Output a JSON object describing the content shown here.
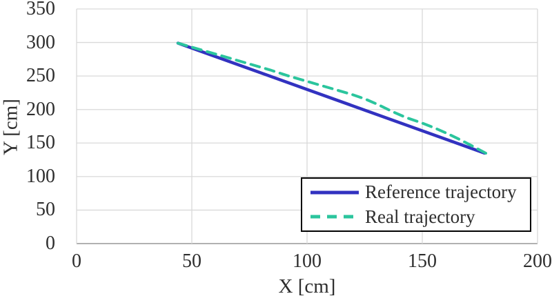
{
  "chart_data": {
    "type": "line",
    "xlabel": "X [cm]",
    "ylabel": "Y [cm]",
    "xlim": [
      0,
      200
    ],
    "ylim": [
      0,
      350
    ],
    "x_ticks": [
      0,
      50,
      100,
      150,
      200
    ],
    "y_ticks": [
      0,
      50,
      100,
      150,
      200,
      250,
      300,
      350
    ],
    "grid": true,
    "legend_position": "inside-bottom-right",
    "series": [
      {
        "name": "Reference trajectory",
        "color": "#3232c0",
        "style": "solid",
        "width": 4.5,
        "points": [
          [
            44,
            299
          ],
          [
            177,
            135
          ]
        ]
      },
      {
        "name": "Real trajectory",
        "color": "#2bc59d",
        "style": "dashed",
        "width": 4,
        "points": [
          [
            44,
            299
          ],
          [
            52,
            291
          ],
          [
            60,
            283
          ],
          [
            68,
            275
          ],
          [
            76,
            267
          ],
          [
            84,
            259
          ],
          [
            92,
            250
          ],
          [
            100,
            242
          ],
          [
            107,
            235
          ],
          [
            113,
            229
          ],
          [
            119,
            223
          ],
          [
            125,
            216
          ],
          [
            131,
            207
          ],
          [
            137,
            197
          ],
          [
            143,
            188
          ],
          [
            149,
            181
          ],
          [
            155,
            173
          ],
          [
            161,
            164
          ],
          [
            167,
            154
          ],
          [
            172,
            145
          ],
          [
            178,
            134
          ]
        ]
      }
    ]
  },
  "colors": {
    "background": "#ffffff",
    "gridline": "#d9d9d9",
    "axis_line": "#a6a6a6",
    "tick_text": "#2e2e2e",
    "legend_border": "#000000"
  }
}
